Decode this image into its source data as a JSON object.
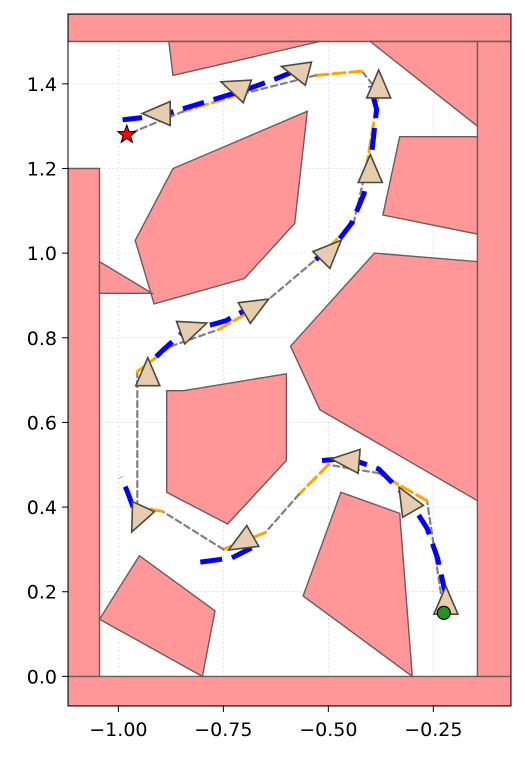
{
  "chart_data": {
    "type": "scatter",
    "title": "",
    "xlabel": "",
    "ylabel": "",
    "xlim": [
      -1.12,
      -0.065
    ],
    "ylim": [
      -0.07,
      1.565
    ],
    "grid": true,
    "x_ticks": [
      -1.0,
      -0.75,
      -0.5,
      -0.25
    ],
    "x_tick_labels": [
      "−1.00",
      "−0.75",
      "−0.50",
      "−0.25"
    ],
    "y_ticks": [
      0.0,
      0.2,
      0.4,
      0.6,
      0.8,
      1.0,
      1.2,
      1.4
    ],
    "y_tick_labels": [
      "0.0",
      "0.2",
      "0.4",
      "0.6",
      "0.8",
      "1.0",
      "1.2",
      "1.4"
    ],
    "colors": {
      "obstacle_fill": "#ff9799",
      "obstacle_edge": "#6e5a5a",
      "path": "#ffa500",
      "link": "#808080",
      "trajectory": "#0000ff",
      "vehicle_fill": "#e8ccb0",
      "vehicle_edge": "#4a4a3a",
      "start": "#1a9a1a",
      "goal": "#ff0000"
    },
    "obstacles": [
      [
        [
          -1.12,
          1.5
        ],
        [
          -0.065,
          1.5
        ],
        [
          -0.065,
          1.565
        ],
        [
          -1.12,
          1.565
        ]
      ],
      [
        [
          -1.12,
          -0.07
        ],
        [
          -0.065,
          -0.07
        ],
        [
          -0.065,
          0.0
        ],
        [
          -1.12,
          0.0
        ]
      ],
      [
        [
          -1.12,
          0.0
        ],
        [
          -1.045,
          0.0
        ],
        [
          -1.045,
          1.2
        ],
        [
          -1.12,
          1.2
        ]
      ],
      [
        [
          -0.145,
          0.0
        ],
        [
          -0.065,
          0.0
        ],
        [
          -0.065,
          1.5
        ],
        [
          -0.145,
          1.5
        ]
      ],
      [
        [
          -0.88,
          1.5
        ],
        [
          -0.52,
          1.5
        ],
        [
          -0.87,
          1.42
        ]
      ],
      [
        [
          -0.4,
          1.5
        ],
        [
          -0.145,
          1.5
        ],
        [
          -0.145,
          1.3
        ]
      ],
      [
        [
          -0.96,
          1.03
        ],
        [
          -0.87,
          1.2
        ],
        [
          -0.55,
          1.335
        ],
        [
          -0.58,
          1.07
        ],
        [
          -0.7,
          0.94
        ],
        [
          -0.915,
          0.88
        ]
      ],
      [
        [
          -0.33,
          1.275
        ],
        [
          -0.145,
          1.275
        ],
        [
          -0.145,
          1.045
        ],
        [
          -0.37,
          1.09
        ]
      ],
      [
        [
          -1.045,
          0.98
        ],
        [
          -0.92,
          0.905
        ],
        [
          -1.045,
          0.905
        ]
      ],
      [
        [
          -0.59,
          0.78
        ],
        [
          -0.52,
          0.63
        ],
        [
          -0.145,
          0.415
        ],
        [
          -0.145,
          0.98
        ],
        [
          -0.39,
          1.0
        ]
      ],
      [
        [
          -0.885,
          0.675
        ],
        [
          -0.845,
          0.675
        ],
        [
          -0.6,
          0.715
        ],
        [
          -0.6,
          0.51
        ],
        [
          -0.74,
          0.36
        ],
        [
          -0.885,
          0.435
        ]
      ],
      [
        [
          -1.045,
          0.135
        ],
        [
          -0.95,
          0.285
        ],
        [
          -0.77,
          0.155
        ],
        [
          -0.8,
          0.0
        ]
      ],
      [
        [
          -0.47,
          0.435
        ],
        [
          -0.33,
          0.385
        ],
        [
          -0.3,
          0.0
        ],
        [
          -0.56,
          0.19
        ]
      ]
    ],
    "planned_path": [
      [
        -0.225,
        0.15
      ],
      [
        -0.265,
        0.415
      ],
      [
        -0.38,
        0.48
      ],
      [
        -0.5,
        0.5
      ],
      [
        -0.57,
        0.43
      ],
      [
        -0.65,
        0.34
      ],
      [
        -0.75,
        0.3
      ],
      [
        -0.895,
        0.39
      ],
      [
        -0.955,
        0.4
      ],
      [
        -0.955,
        0.72
      ],
      [
        -0.875,
        0.78
      ],
      [
        -0.76,
        0.82
      ],
      [
        -0.655,
        0.88
      ],
      [
        -0.53,
        0.985
      ],
      [
        -0.44,
        1.07
      ],
      [
        -0.41,
        1.2
      ],
      [
        -0.38,
        1.38
      ],
      [
        -0.42,
        1.43
      ],
      [
        -0.53,
        1.42
      ],
      [
        -0.71,
        1.375
      ],
      [
        -0.845,
        1.335
      ],
      [
        -0.98,
        1.28
      ]
    ],
    "trajectory_segments": [
      [
        [
          -0.22,
          0.19
        ],
        [
          -0.24,
          0.28
        ],
        [
          -0.265,
          0.35
        ],
        [
          -0.31,
          0.42
        ],
        [
          -0.38,
          0.49
        ],
        [
          -0.45,
          0.515
        ],
        [
          -0.515,
          0.51
        ]
      ],
      [
        [
          -0.805,
          0.27
        ],
        [
          -0.73,
          0.28
        ],
        [
          -0.68,
          0.305
        ]
      ],
      [
        [
          -0.965,
          0.4
        ],
        [
          -0.98,
          0.44
        ],
        [
          -0.995,
          0.47
        ]
      ],
      [
        [
          -0.945,
          0.69
        ],
        [
          -0.93,
          0.735
        ],
        [
          -0.895,
          0.77
        ],
        [
          -0.85,
          0.81
        ],
        [
          -0.8,
          0.825
        ],
        [
          -0.745,
          0.84
        ],
        [
          -0.69,
          0.87
        ],
        [
          -0.65,
          0.9
        ]
      ],
      [
        [
          -0.53,
          0.985
        ],
        [
          -0.48,
          1.025
        ],
        [
          -0.445,
          1.07
        ],
        [
          -0.415,
          1.14
        ],
        [
          -0.395,
          1.25
        ],
        [
          -0.385,
          1.34
        ],
        [
          -0.4,
          1.395
        ]
      ],
      [
        [
          -0.58,
          1.43
        ],
        [
          -0.63,
          1.41
        ],
        [
          -0.7,
          1.385
        ],
        [
          -0.8,
          1.355
        ],
        [
          -0.9,
          1.325
        ],
        [
          -0.99,
          1.315
        ]
      ]
    ],
    "vehicles": [
      {
        "x": -0.22,
        "y": 0.17,
        "theta": 90
      },
      {
        "x": -0.31,
        "y": 0.41,
        "theta": 120
      },
      {
        "x": -0.45,
        "y": 0.51,
        "theta": 175
      },
      {
        "x": -0.7,
        "y": 0.32,
        "theta": 210
      },
      {
        "x": -0.95,
        "y": 0.38,
        "theta": 245
      },
      {
        "x": -0.93,
        "y": 0.71,
        "theta": 90
      },
      {
        "x": -0.83,
        "y": 0.82,
        "theta": 20
      },
      {
        "x": -0.68,
        "y": 0.87,
        "theta": 30
      },
      {
        "x": -0.5,
        "y": 1.0,
        "theta": 45
      },
      {
        "x": -0.4,
        "y": 1.19,
        "theta": 90
      },
      {
        "x": -0.38,
        "y": 1.39,
        "theta": 90
      },
      {
        "x": -0.57,
        "y": 1.43,
        "theta": 165
      },
      {
        "x": -0.715,
        "y": 1.39,
        "theta": 160
      },
      {
        "x": -0.9,
        "y": 1.33,
        "theta": 180
      }
    ],
    "start": {
      "x": -0.225,
      "y": 0.15
    },
    "goal": {
      "x": -0.98,
      "y": 1.28
    }
  }
}
